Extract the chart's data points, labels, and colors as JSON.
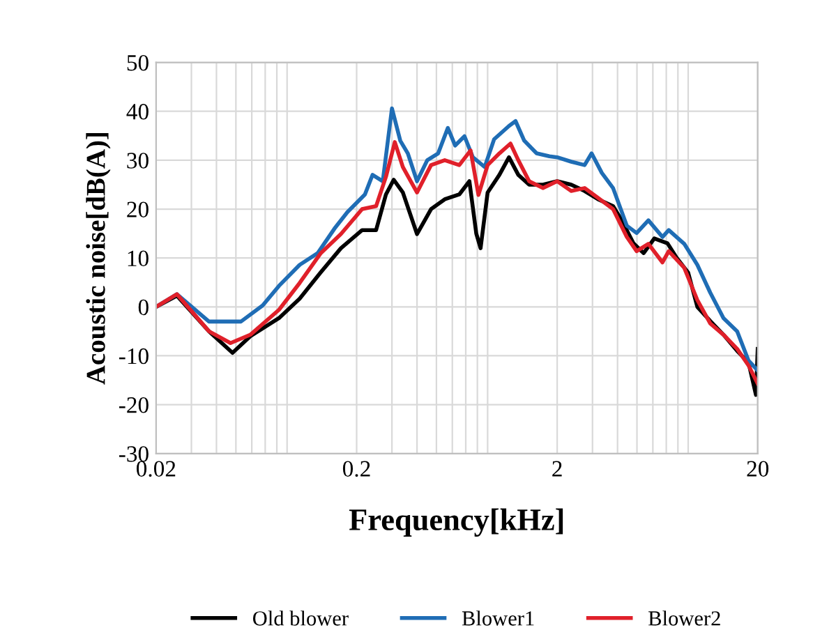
{
  "chart_data": {
    "type": "line",
    "xlabel": "Frequency[kHz]",
    "ylabel": "Acoustic noise[dB(A)]",
    "log": "x",
    "xlim": [
      0.02,
      20
    ],
    "xticks": [
      0.02,
      0.2,
      2,
      20
    ],
    "ylim": [
      -30,
      50
    ],
    "yticks": [
      -30,
      -20,
      -10,
      0,
      10,
      20,
      30,
      40,
      50
    ],
    "grid": true,
    "legend": "bottom",
    "line_style": "solid",
    "marker": "none",
    "series": [
      {
        "name": "Old blower",
        "color": "#000000",
        "x": [
          0.02,
          0.0254,
          0.0367,
          0.0481,
          0.059,
          0.082,
          0.104,
          0.132,
          0.167,
          0.213,
          0.25,
          0.28,
          0.306,
          0.34,
          0.4,
          0.47,
          0.55,
          0.65,
          0.73,
          0.79,
          0.83,
          0.9,
          1.03,
          1.15,
          1.28,
          1.45,
          1.7,
          2.0,
          2.35,
          2.74,
          3.2,
          3.8,
          4.2,
          4.8,
          5.4,
          6.1,
          7.1,
          7.9,
          9.0,
          10.0,
          11.6,
          13.5,
          15.8,
          18,
          19.6,
          20
        ],
        "values": [
          0,
          2.3,
          -5,
          -9.4,
          -6,
          -2.3,
          1.7,
          7,
          12,
          15.7,
          15.7,
          23,
          26,
          23.4,
          14.9,
          20,
          22,
          23,
          25.7,
          15,
          12,
          23.4,
          27,
          30.6,
          27,
          25,
          25,
          25.7,
          25,
          23.7,
          22,
          20.6,
          17.7,
          13,
          11,
          14,
          13,
          10,
          7,
          0,
          -2.9,
          -5.7,
          -9,
          -11.4,
          -18,
          -8.6
        ]
      },
      {
        "name": "Blower1",
        "color": "#1f6db5",
        "x": [
          0.02,
          0.0254,
          0.0367,
          0.053,
          0.068,
          0.082,
          0.104,
          0.128,
          0.155,
          0.18,
          0.22,
          0.24,
          0.27,
          0.3,
          0.33,
          0.36,
          0.4,
          0.45,
          0.51,
          0.57,
          0.62,
          0.69,
          0.76,
          0.87,
          0.97,
          1.15,
          1.24,
          1.37,
          1.58,
          1.83,
          2.0,
          2.35,
          2.74,
          2.97,
          3.34,
          3.8,
          4.45,
          4.98,
          5.7,
          6.7,
          7.2,
          8.6,
          10,
          11.6,
          13.5,
          15.8,
          18,
          20
        ],
        "values": [
          0,
          2.6,
          -3,
          -3,
          0.3,
          4.3,
          8.6,
          11,
          16,
          19.4,
          23,
          27,
          25.7,
          40.6,
          34,
          31.4,
          25.7,
          30,
          31.4,
          36.6,
          33,
          34.9,
          30.6,
          28.6,
          34.3,
          37,
          38,
          34,
          31.4,
          30.8,
          30.6,
          29.7,
          29,
          31.4,
          27.4,
          24.3,
          16.6,
          15.1,
          17.7,
          14.3,
          15.7,
          12.9,
          8.6,
          2.9,
          -2.3,
          -5,
          -11,
          -13
        ]
      },
      {
        "name": "Blower2",
        "color": "#e0202a",
        "x": [
          0.02,
          0.0254,
          0.0367,
          0.047,
          0.059,
          0.082,
          0.104,
          0.132,
          0.167,
          0.213,
          0.25,
          0.28,
          0.31,
          0.34,
          0.4,
          0.47,
          0.55,
          0.65,
          0.74,
          0.81,
          0.9,
          1.03,
          1.17,
          1.28,
          1.45,
          1.7,
          2.0,
          2.35,
          2.74,
          3.2,
          3.8,
          4.45,
          4.98,
          5.7,
          6.7,
          7.2,
          8.6,
          10,
          11.6,
          13.5,
          15.8,
          18,
          20
        ],
        "values": [
          0,
          2.6,
          -5,
          -7.4,
          -5.7,
          -0.6,
          4.9,
          10.9,
          14.9,
          20,
          20.6,
          26.6,
          33.7,
          28.6,
          23.4,
          29,
          30,
          29,
          32,
          22.9,
          29,
          31.4,
          33.4,
          30,
          25.7,
          24.3,
          25.7,
          23.7,
          24.3,
          22.3,
          20,
          14.3,
          11.4,
          12.9,
          9.1,
          11.4,
          8,
          1.4,
          -3.4,
          -5.7,
          -8.6,
          -12,
          -15.7
        ]
      }
    ]
  }
}
